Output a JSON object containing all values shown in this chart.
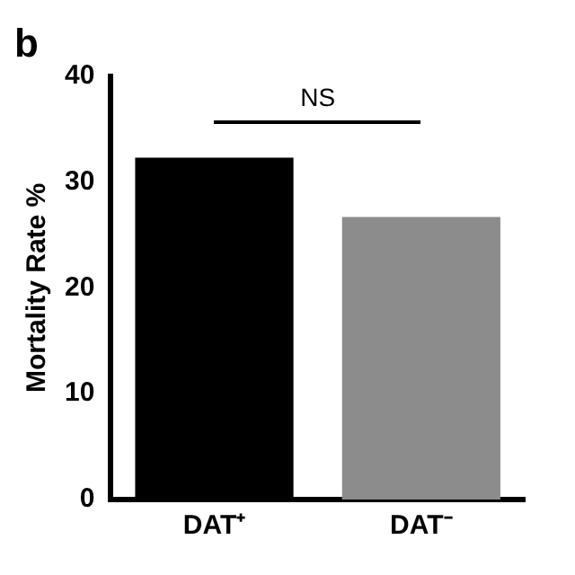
{
  "chart_data": {
    "type": "bar",
    "title": "b",
    "ylabel": "Mortality Rate %",
    "categories": [
      "DAT⁺",
      "DAT⁻"
    ],
    "values": [
      32.3,
      26.7
    ],
    "colors": [
      "#000000",
      "#8c8c8c"
    ],
    "ylim": [
      0,
      40
    ],
    "yticks": [
      0,
      10,
      20,
      30,
      40
    ],
    "grid": false,
    "legend": false,
    "annotations": [
      "NS"
    ]
  }
}
